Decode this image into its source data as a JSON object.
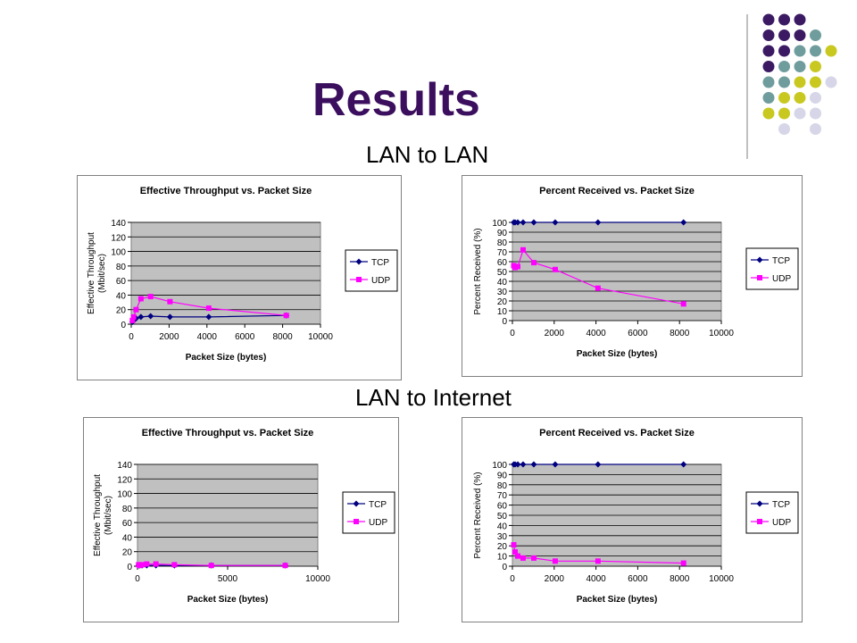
{
  "slide": {
    "title": "Results",
    "sections": [
      "LAN to LAN",
      "LAN to Internet"
    ]
  },
  "colors": {
    "title": "#3b0f5e",
    "tcp": "#000080",
    "udp": "#ff00ff",
    "plot_bg": "#c0c0c0",
    "dots": [
      "#3b1a63",
      "#6f9c9c",
      "#c8c820",
      "#d6d6e8"
    ]
  },
  "chart_data": [
    {
      "type": "line",
      "title": "Effective Throughput vs. Packet Size",
      "xlabel": "Packet Size (bytes)",
      "ylabel": [
        "Effective Throughput",
        "(Mbit/sec)"
      ],
      "xlim": [
        0,
        10000
      ],
      "ylim": [
        0,
        140
      ],
      "xticks": [
        0,
        2000,
        4000,
        6000,
        8000,
        10000
      ],
      "yticks": [
        0,
        20,
        40,
        60,
        80,
        100,
        120,
        140
      ],
      "grid": true,
      "legend": "right",
      "series": [
        {
          "name": "TCP",
          "x": [
            64,
            128,
            256,
            512,
            1024,
            2048,
            4096,
            8192
          ],
          "y": [
            3,
            5,
            8,
            10,
            11,
            10,
            10,
            12
          ]
        },
        {
          "name": "UDP",
          "x": [
            64,
            128,
            256,
            512,
            1024,
            2048,
            4096,
            8192
          ],
          "y": [
            5,
            10,
            20,
            35,
            38,
            31,
            22,
            12
          ]
        }
      ]
    },
    {
      "type": "line",
      "title": "Percent Received vs. Packet Size",
      "xlabel": "Packet Size (bytes)",
      "ylabel": [
        "Percent Received (%)"
      ],
      "xlim": [
        0,
        10000
      ],
      "ylim": [
        0,
        100
      ],
      "xticks": [
        0,
        2000,
        4000,
        6000,
        8000,
        10000
      ],
      "yticks": [
        0,
        10,
        20,
        30,
        40,
        50,
        60,
        70,
        80,
        90,
        100
      ],
      "grid": true,
      "legend": "right",
      "series": [
        {
          "name": "TCP",
          "x": [
            64,
            128,
            256,
            512,
            1024,
            2048,
            4096,
            8192
          ],
          "y": [
            100,
            100,
            100,
            100,
            100,
            100,
            100,
            100
          ]
        },
        {
          "name": "UDP",
          "x": [
            64,
            128,
            256,
            512,
            1024,
            2048,
            4096,
            8192
          ],
          "y": [
            56,
            54,
            55,
            72,
            59,
            52,
            33,
            17
          ]
        }
      ]
    },
    {
      "type": "line",
      "title": "Effective Throughput vs. Packet Size",
      "xlabel": "Packet Size (bytes)",
      "ylabel": [
        "Effective Throughput",
        "(Mbit/sec)"
      ],
      "xlim": [
        0,
        10000
      ],
      "ylim": [
        0,
        140
      ],
      "xticks": [
        0,
        5000,
        10000
      ],
      "yticks": [
        0,
        20,
        40,
        60,
        80,
        100,
        120,
        140
      ],
      "grid": true,
      "legend": "right",
      "series": [
        {
          "name": "TCP",
          "x": [
            64,
            128,
            256,
            512,
            1024,
            2048,
            4096,
            8192
          ],
          "y": [
            1,
            1,
            1,
            1,
            1,
            1,
            1,
            1
          ]
        },
        {
          "name": "UDP",
          "x": [
            64,
            128,
            256,
            512,
            1024,
            2048,
            4096,
            8192
          ],
          "y": [
            2,
            1,
            2,
            3,
            3,
            2,
            1,
            1
          ]
        }
      ]
    },
    {
      "type": "line",
      "title": "Percent Received vs. Packet Size",
      "xlabel": "Packet Size (bytes)",
      "ylabel": [
        "Percent Received (%)"
      ],
      "xlim": [
        0,
        10000
      ],
      "ylim": [
        0,
        100
      ],
      "xticks": [
        0,
        2000,
        4000,
        6000,
        8000,
        10000
      ],
      "yticks": [
        0,
        10,
        20,
        30,
        40,
        50,
        60,
        70,
        80,
        90,
        100
      ],
      "grid": true,
      "legend": "right",
      "series": [
        {
          "name": "TCP",
          "x": [
            64,
            128,
            256,
            512,
            1024,
            2048,
            4096,
            8192
          ],
          "y": [
            100,
            100,
            100,
            100,
            100,
            100,
            100,
            100
          ]
        },
        {
          "name": "UDP",
          "x": [
            64,
            128,
            256,
            512,
            1024,
            2048,
            4096,
            8192
          ],
          "y": [
            21,
            14,
            10,
            8,
            8,
            5,
            5,
            3
          ]
        }
      ]
    }
  ]
}
